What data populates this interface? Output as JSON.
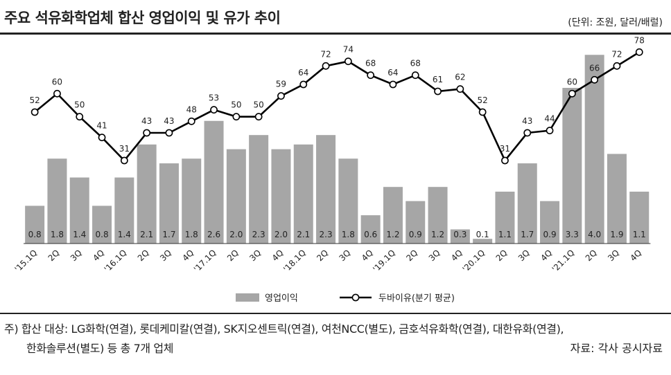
{
  "header": {
    "title": "주요 석유화학업체 합산 영업이익 및 유가 추이",
    "unit": "(단위: 조원, 달러/배럴)"
  },
  "footer": {
    "note_line1": "주) 합산 대상: LG화학(연결), 롯데케미칼(연결), SK지오센트릭(연결), 여천NCC(별도), 금호석유화학(연결), 대한유화(연결),",
    "note_line2": "한화솔루션(별도) 등 총 7개 업체",
    "source": "자료: 각사 공시자료"
  },
  "chart_data": {
    "type": "bar+line",
    "categories": [
      "'15.1Q",
      "2Q",
      "3Q",
      "4Q",
      "'16.1Q",
      "2Q",
      "3Q",
      "4Q",
      "'17.1Q",
      "2Q",
      "3Q",
      "4Q",
      "'18.1Q",
      "2Q",
      "3Q",
      "4Q",
      "'19.1Q",
      "2Q",
      "3Q",
      "4Q",
      "'20.1Q",
      "2Q",
      "3Q",
      "4Q",
      "'21.1Q",
      "2Q",
      "3Q",
      "4Q"
    ],
    "series": [
      {
        "name": "영업이익",
        "kind": "bar",
        "color": "#a6a6a6",
        "values": [
          0.8,
          1.8,
          1.4,
          0.8,
          1.4,
          2.1,
          1.7,
          1.8,
          2.6,
          2.0,
          2.3,
          2.0,
          2.1,
          2.3,
          1.8,
          0.6,
          1.2,
          0.9,
          1.2,
          0.3,
          0.1,
          1.1,
          1.7,
          0.9,
          3.3,
          4.0,
          1.9,
          1.1
        ],
        "labels": [
          "0.8",
          "1.8",
          "1.4",
          "0.8",
          "1.4",
          "2.1",
          "1.7",
          "1.8",
          "2.6",
          "2.0",
          "2.3",
          "2.0",
          "2.1",
          "2.3",
          "1.8",
          "0.6",
          "1.2",
          "0.9",
          "1.2",
          "0.3",
          "0.1",
          "1.1",
          "1.7",
          "0.9",
          "3.3",
          "4.0",
          "1.9",
          "1.1"
        ]
      },
      {
        "name": "두바이유(분기 평균)",
        "kind": "line",
        "color": "#000000",
        "values": [
          52,
          60,
          50,
          41,
          31,
          43,
          43,
          48,
          53,
          50,
          50,
          59,
          64,
          72,
          74,
          68,
          64,
          68,
          61,
          62,
          52,
          31,
          43,
          44,
          60,
          66,
          72,
          78
        ]
      }
    ],
    "bar_ylim": [
      0,
      4.4
    ],
    "line_ylim": [
      -5,
      85
    ],
    "legend_position": "bottom-center",
    "grid": false
  }
}
